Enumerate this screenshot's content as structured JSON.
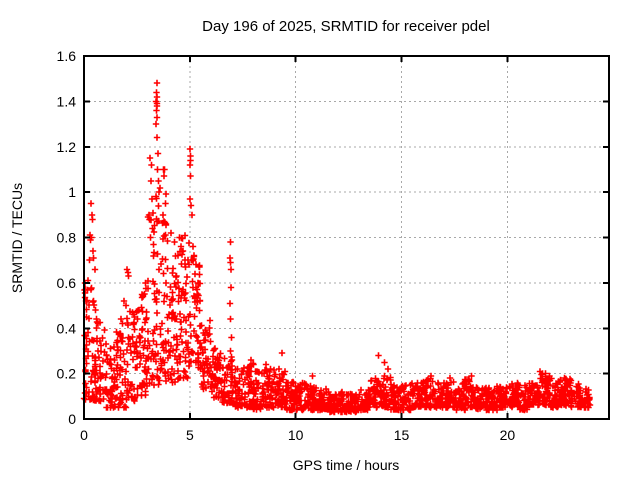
{
  "chart_data": {
    "type": "scatter",
    "title": "Day 196 of 2025, SRMTID for receiver pdel",
    "xlabel": "GPS time / hours",
    "ylabel": "SRMTID / TECUs",
    "xlim": [
      0,
      24.8
    ],
    "ylim": [
      0,
      1.6
    ],
    "xticks": {
      "values": [
        0,
        5,
        10,
        15,
        20
      ],
      "labels": [
        "0",
        "5",
        "10",
        "15",
        "20"
      ]
    },
    "yticks": {
      "values": [
        0,
        0.2,
        0.4,
        0.6,
        0.8,
        1.0,
        1.2,
        1.4,
        1.6
      ],
      "labels": [
        "0",
        "0.2",
        "0.4",
        "0.6",
        "0.8",
        "1",
        "1.2",
        "1.4",
        "1.6"
      ]
    },
    "grid": true,
    "grid_style": "dotted",
    "legend": "none",
    "marker": {
      "shape": "plus",
      "size": 7,
      "stroke_width": 1.6
    },
    "colors": {
      "points": "#ff0000",
      "border": "#000000",
      "grid": "#a8a8a8",
      "text": "#000000",
      "background": "#ffffff"
    },
    "series_name": "SRMTID",
    "outlier_points": [
      [
        0.05,
        0.6
      ],
      [
        0.07,
        0.57
      ],
      [
        0.1,
        0.52
      ],
      [
        0.33,
        0.95
      ],
      [
        0.38,
        0.9
      ],
      [
        0.4,
        0.88
      ],
      [
        0.28,
        0.81
      ],
      [
        0.33,
        0.8
      ],
      [
        0.36,
        0.8
      ],
      [
        0.31,
        0.79
      ],
      [
        0.42,
        0.74
      ],
      [
        0.46,
        0.71
      ],
      [
        0.27,
        0.7
      ],
      [
        0.52,
        0.66
      ],
      [
        0.18,
        0.61
      ],
      [
        0.34,
        0.57
      ],
      [
        0.44,
        0.52
      ],
      [
        0.55,
        0.48
      ],
      [
        0.6,
        0.44
      ],
      [
        1.75,
        0.44
      ],
      [
        1.82,
        0.42
      ],
      [
        1.9,
        0.52
      ],
      [
        1.98,
        0.5
      ],
      [
        2.04,
        0.66
      ],
      [
        2.07,
        0.645
      ],
      [
        2.1,
        0.63
      ],
      [
        2.28,
        0.47
      ],
      [
        2.38,
        0.45
      ],
      [
        2.85,
        0.55
      ],
      [
        2.9,
        0.6
      ],
      [
        2.94,
        0.575
      ],
      [
        3.12,
        1.15
      ],
      [
        3.18,
        1.12
      ],
      [
        3.16,
        1.05
      ],
      [
        3.21,
        0.97
      ],
      [
        3.1,
        0.88
      ],
      [
        3.24,
        0.84
      ],
      [
        3.13,
        0.8
      ],
      [
        3.28,
        0.77
      ],
      [
        3.4,
        1.4
      ],
      [
        3.42,
        1.44
      ],
      [
        3.43,
        1.36
      ],
      [
        3.44,
        1.48
      ],
      [
        3.44,
        1.39
      ],
      [
        3.45,
        1.42
      ],
      [
        3.46,
        1.38
      ],
      [
        3.44,
        1.33
      ],
      [
        3.41,
        1.3
      ],
      [
        3.45,
        1.24
      ],
      [
        3.5,
        1.17
      ],
      [
        3.48,
        1.1
      ],
      [
        3.52,
        1.05
      ],
      [
        3.55,
        1.0
      ],
      [
        3.76,
        1.1
      ],
      [
        3.81,
        1.1
      ],
      [
        3.79,
        1.07
      ],
      [
        3.84,
        0.95
      ],
      [
        3.74,
        0.9
      ],
      [
        3.88,
        0.86
      ],
      [
        4.1,
        0.82
      ],
      [
        4.28,
        0.78
      ],
      [
        4.5,
        0.8
      ],
      [
        4.58,
        0.76
      ],
      [
        4.68,
        0.74
      ],
      [
        4.45,
        0.72
      ],
      [
        4.78,
        0.7
      ],
      [
        5.0,
        1.19
      ],
      [
        5.02,
        1.16
      ],
      [
        5.04,
        1.14
      ],
      [
        5.01,
        1.12
      ],
      [
        5.03,
        1.07
      ],
      [
        5.0,
        0.97
      ],
      [
        5.06,
        0.94
      ],
      [
        5.1,
        0.9
      ],
      [
        5.14,
        0.76
      ],
      [
        5.2,
        0.72
      ],
      [
        5.28,
        0.68
      ],
      [
        5.24,
        0.64
      ],
      [
        5.38,
        0.6
      ],
      [
        5.34,
        0.57
      ],
      [
        5.48,
        0.52
      ],
      [
        6.9,
        0.71
      ],
      [
        6.91,
        0.3
      ],
      [
        6.92,
        0.69
      ],
      [
        6.93,
        0.78
      ],
      [
        6.93,
        0.44
      ],
      [
        6.94,
        0.58
      ],
      [
        6.95,
        0.66
      ],
      [
        6.96,
        0.36
      ],
      [
        6.9,
        0.51
      ],
      [
        7.0,
        0.26
      ],
      [
        7.9,
        0.26
      ],
      [
        8.0,
        0.24
      ],
      [
        8.6,
        0.24
      ],
      [
        8.8,
        0.22
      ],
      [
        9.2,
        0.22
      ],
      [
        9.35,
        0.29
      ],
      [
        9.5,
        0.21
      ],
      [
        10.8,
        0.19
      ],
      [
        13.9,
        0.28
      ],
      [
        14.2,
        0.25
      ],
      [
        14.35,
        0.22
      ],
      [
        16.4,
        0.19
      ],
      [
        17.3,
        0.18
      ],
      [
        18.3,
        0.19
      ],
      [
        21.55,
        0.21
      ],
      [
        21.65,
        0.2
      ],
      [
        21.8,
        0.2
      ],
      [
        22.7,
        0.18
      ],
      [
        23.0,
        0.17
      ]
    ],
    "cloud_bins_format": "[x_start_hours, x_end_hours, point_count, y_min_TECUs, y_max_TECUs, low_bias_exponent]",
    "cloud_bins": [
      [
        0,
        0.5,
        46,
        0.08,
        0.58,
        1.5
      ],
      [
        0.5,
        1,
        46,
        0.08,
        0.45,
        1.5
      ],
      [
        1,
        1.5,
        46,
        0.05,
        0.35,
        1.4
      ],
      [
        1.5,
        2,
        46,
        0.04,
        0.4,
        1.4
      ],
      [
        2,
        2.5,
        46,
        0.08,
        0.48,
        1.4
      ],
      [
        2.5,
        3,
        48,
        0.1,
        0.55,
        1.3
      ],
      [
        3,
        3.5,
        52,
        0.15,
        1.0,
        1.6
      ],
      [
        3.5,
        4,
        52,
        0.15,
        1.05,
        1.6
      ],
      [
        4,
        4.5,
        50,
        0.15,
        0.72,
        1.3
      ],
      [
        4.5,
        5,
        50,
        0.18,
        0.82,
        1.4
      ],
      [
        5,
        5.5,
        48,
        0.22,
        0.72,
        1.3
      ],
      [
        5.5,
        6,
        46,
        0.13,
        0.45,
        1.4
      ],
      [
        6,
        6.5,
        46,
        0.09,
        0.32,
        1.4
      ],
      [
        6.5,
        7,
        46,
        0.07,
        0.28,
        1.5
      ],
      [
        7,
        7.5,
        44,
        0.05,
        0.22,
        1.5
      ],
      [
        7.5,
        8,
        44,
        0.05,
        0.25,
        1.5
      ],
      [
        8,
        8.5,
        44,
        0.04,
        0.22,
        1.5
      ],
      [
        8.5,
        9,
        44,
        0.05,
        0.23,
        1.5
      ],
      [
        9,
        9.5,
        44,
        0.05,
        0.21,
        1.5
      ],
      [
        9.5,
        10,
        42,
        0.04,
        0.17,
        1.5
      ],
      [
        10,
        10.5,
        42,
        0.04,
        0.16,
        1.5
      ],
      [
        10.5,
        11,
        42,
        0.04,
        0.15,
        1.5
      ],
      [
        11,
        11.5,
        42,
        0.04,
        0.14,
        1.5
      ],
      [
        11.5,
        12,
        42,
        0.03,
        0.13,
        1.5
      ],
      [
        12,
        12.5,
        42,
        0.03,
        0.12,
        1.5
      ],
      [
        12.5,
        13,
        42,
        0.03,
        0.11,
        1.5
      ],
      [
        13,
        13.5,
        42,
        0.04,
        0.13,
        1.5
      ],
      [
        13.5,
        14,
        44,
        0.05,
        0.18,
        1.5
      ],
      [
        14,
        14.5,
        44,
        0.05,
        0.19,
        1.5
      ],
      [
        14.5,
        15,
        42,
        0.04,
        0.15,
        1.5
      ],
      [
        15,
        15.5,
        42,
        0.04,
        0.15,
        1.5
      ],
      [
        15.5,
        16,
        42,
        0.05,
        0.17,
        1.5
      ],
      [
        16,
        16.5,
        44,
        0.05,
        0.18,
        1.5
      ],
      [
        16.5,
        17,
        42,
        0.05,
        0.16,
        1.5
      ],
      [
        17,
        17.5,
        42,
        0.05,
        0.17,
        1.5
      ],
      [
        17.5,
        18,
        42,
        0.04,
        0.16,
        1.5
      ],
      [
        18,
        18.5,
        42,
        0.05,
        0.18,
        1.5
      ],
      [
        18.5,
        19,
        42,
        0.04,
        0.14,
        1.5
      ],
      [
        19,
        19.5,
        42,
        0.04,
        0.14,
        1.5
      ],
      [
        19.5,
        20,
        42,
        0.05,
        0.15,
        1.5
      ],
      [
        20,
        20.5,
        42,
        0.05,
        0.16,
        1.5
      ],
      [
        20.5,
        21,
        42,
        0.04,
        0.16,
        1.5
      ],
      [
        21,
        21.5,
        44,
        0.06,
        0.18,
        1.4
      ],
      [
        21.5,
        22,
        48,
        0.06,
        0.2,
        1.3
      ],
      [
        22,
        22.5,
        46,
        0.05,
        0.18,
        1.4
      ],
      [
        22.5,
        23,
        46,
        0.06,
        0.18,
        1.4
      ],
      [
        23,
        23.5,
        42,
        0.05,
        0.16,
        1.5
      ],
      [
        23.5,
        23.9,
        30,
        0.05,
        0.14,
        1.5
      ]
    ],
    "seed": 20250196
  }
}
